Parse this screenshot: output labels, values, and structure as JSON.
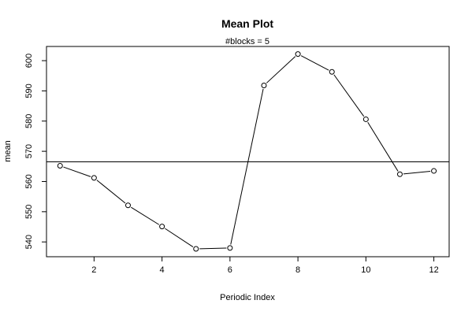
{
  "chart_data": {
    "type": "line",
    "title": "Mean Plot",
    "subtitle": "#blocks =  5",
    "xlabel": "Periodic Index",
    "ylabel": "mean",
    "x": [
      1,
      2,
      3,
      4,
      5,
      6,
      7,
      8,
      9,
      10,
      11,
      12
    ],
    "series": [
      {
        "values": [
          565.2,
          561.2,
          552.1,
          545.1,
          537.7,
          538.0,
          591.8,
          602.2,
          596.3,
          580.6,
          562.4,
          563.5
        ]
      }
    ],
    "hline": 566.5,
    "xlim": [
      0.6,
      12.45
    ],
    "ylim": [
      535.1,
      604.7
    ],
    "xticks": [
      2,
      4,
      6,
      8,
      10,
      12
    ],
    "yticks": [
      540,
      550,
      560,
      570,
      580,
      590,
      600
    ],
    "xtick_labels": [
      "2",
      "4",
      "6",
      "8",
      "10",
      "12"
    ],
    "ytick_labels": [
      "540",
      "550",
      "560",
      "570",
      "580",
      "590",
      "600"
    ],
    "grid": false,
    "marker": "open-circle",
    "line_color": "#000000"
  }
}
